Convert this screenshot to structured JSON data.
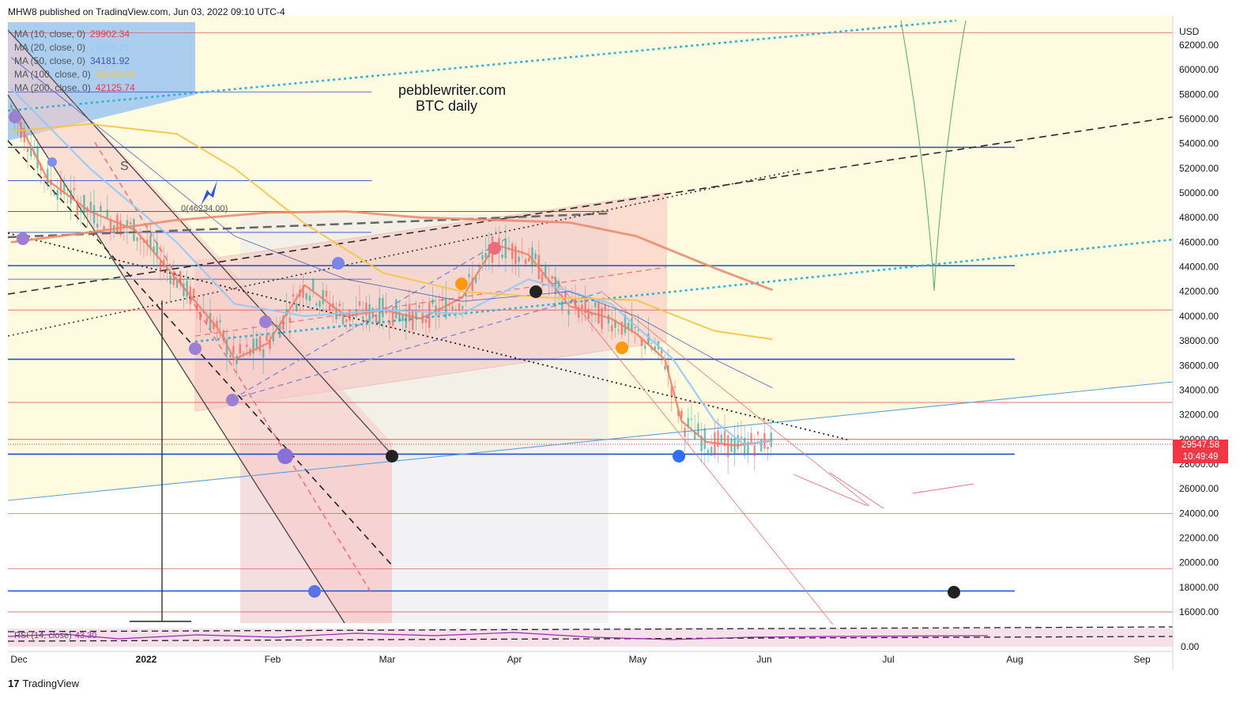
{
  "header": {
    "published": "MHW8 published on TradingView.com, Jun 03, 2022 09:10 UTC-4"
  },
  "watermark": {
    "line1": "pebblewriter.com",
    "line2": "BTC daily"
  },
  "legend": {
    "items": [
      {
        "label": "MA (10, close, 0)",
        "value": "29902.34",
        "color": "#f23645"
      },
      {
        "label": "MA (20, close, 0)",
        "value": "29856.21",
        "color": "#90caf9"
      },
      {
        "label": "MA (50, close, 0)",
        "value": "34181.92",
        "color": "#3f51b5"
      },
      {
        "label": "MA (100, close, 0)",
        "value": "38130.00",
        "color": "#f7c343"
      },
      {
        "label": "MA (200, close, 0)",
        "value": "42125.74",
        "color": "#f23645"
      }
    ]
  },
  "price_label": {
    "price": "29547.58",
    "countdown": "10:49:49",
    "color": "#f23645"
  },
  "annotations": {
    "s_marker": "S",
    "level_label": "0(46234.00)"
  },
  "rsi": {
    "label": "RSI (14, close)",
    "value": "43.30"
  },
  "footer": {
    "brand": "TradingView",
    "mark": "17"
  },
  "chart_data": {
    "type": "line",
    "title": "",
    "ylabel": "USD",
    "x_ticks": [
      "Dec",
      "2022",
      "Feb",
      "Mar",
      "Apr",
      "May",
      "Jun",
      "Jul",
      "Aug",
      "Sep"
    ],
    "y_ticks": [
      62000,
      60000,
      58000,
      56000,
      54000,
      52000,
      50000,
      48000,
      46000,
      44000,
      42000,
      40000,
      38000,
      36000,
      34000,
      32000,
      30000,
      28000,
      26000,
      24000,
      22000,
      20000,
      18000,
      16000
    ],
    "ylim": [
      15000,
      63500
    ],
    "grid": false,
    "legend_position": "top-left",
    "horizontal_levels": [
      53700,
      44100,
      36500,
      28800,
      17700
    ],
    "series": [
      {
        "name": "MA (10, close, 0)",
        "color": "#f08066",
        "x": [
          "2021-12-01",
          "2021-12-10",
          "2021-12-20",
          "2021-12-31",
          "2022-01-10",
          "2022-01-20",
          "2022-01-24",
          "2022-02-01",
          "2022-02-10",
          "2022-02-20",
          "2022-03-01",
          "2022-03-10",
          "2022-03-20",
          "2022-03-28",
          "2022-04-05",
          "2022-04-15",
          "2022-04-25",
          "2022-05-01",
          "2022-05-08",
          "2022-05-12",
          "2022-05-18",
          "2022-05-25",
          "2022-06-03"
        ],
        "y": [
          57000,
          51000,
          48500,
          47000,
          43000,
          39000,
          36500,
          37800,
          42500,
          40000,
          40500,
          39800,
          41500,
          45800,
          45000,
          40800,
          39800,
          38600,
          36500,
          31500,
          29800,
          29500,
          29900
        ]
      },
      {
        "name": "MA (20, close, 0)",
        "color": "#90caf9",
        "x": [
          "2021-12-01",
          "2021-12-20",
          "2022-01-10",
          "2022-01-24",
          "2022-02-10",
          "2022-03-01",
          "2022-03-20",
          "2022-04-05",
          "2022-04-25",
          "2022-05-10",
          "2022-05-20",
          "2022-05-27",
          "2022-06-03"
        ],
        "y": [
          58500,
          52000,
          46000,
          41000,
          40000,
          40500,
          40200,
          43000,
          41000,
          36500,
          31500,
          29600,
          29856
        ]
      },
      {
        "name": "MA (50, close, 0)",
        "color": "#3f51b5",
        "x": [
          "2021-12-01",
          "2021-12-31",
          "2022-01-24",
          "2022-02-20",
          "2022-03-20",
          "2022-04-15",
          "2022-05-01",
          "2022-05-20",
          "2022-06-03"
        ],
        "y": [
          61000,
          53000,
          46500,
          43000,
          41200,
          42000,
          40000,
          36500,
          34181
        ]
      },
      {
        "name": "MA (100, close, 0)",
        "color": "#f7c343",
        "x": [
          "2021-12-01",
          "2021-12-20",
          "2022-01-10",
          "2022-01-24",
          "2022-02-10",
          "2022-03-01",
          "2022-03-20",
          "2022-04-10",
          "2022-05-01",
          "2022-05-20",
          "2022-06-03"
        ],
        "y": [
          55000,
          55600,
          54800,
          52000,
          47500,
          43500,
          42000,
          41500,
          41300,
          38800,
          38130
        ]
      },
      {
        "name": "MA (200, close, 0)",
        "color": "#f0896e",
        "x": [
          "2021-12-01",
          "2021-12-20",
          "2022-01-10",
          "2022-02-01",
          "2022-02-20",
          "2022-03-10",
          "2022-03-28",
          "2022-04-15",
          "2022-05-01",
          "2022-05-20",
          "2022-06-03"
        ],
        "y": [
          46000,
          46800,
          47800,
          48400,
          48500,
          48000,
          47800,
          47600,
          46500,
          43900,
          42125
        ]
      }
    ]
  }
}
